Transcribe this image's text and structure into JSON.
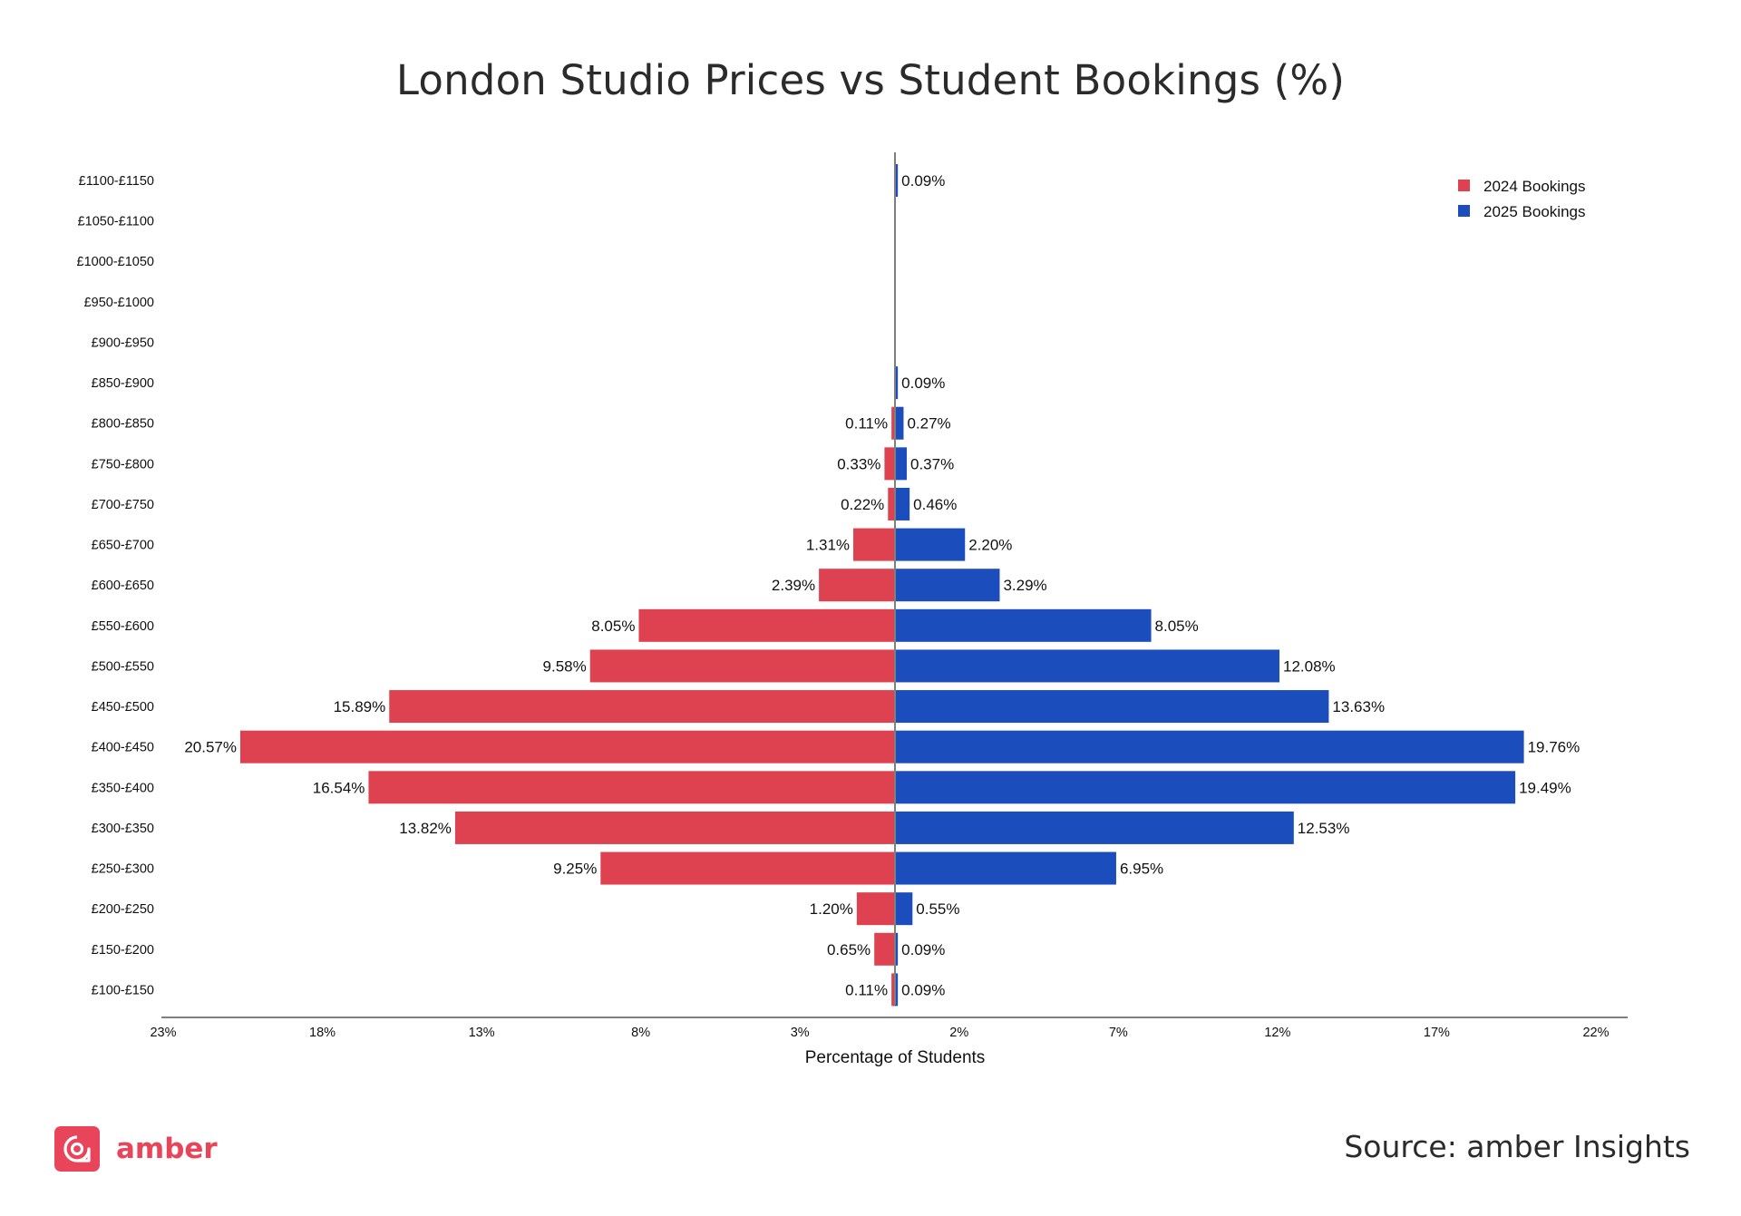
{
  "chart_data": {
    "type": "bar",
    "orientation": "horizontal",
    "layout": "diverging",
    "title": "London Studio Prices vs Student Bookings (%)",
    "xlabel": "Percentage of Students",
    "ylabel": "",
    "xlim": [
      -23,
      23
    ],
    "x_tick_labels": [
      "23%",
      "18%",
      "13%",
      "8%",
      "3%",
      "2%",
      "7%",
      "12%",
      "17%",
      "22%"
    ],
    "categories": [
      "£1100-£1150",
      "£1050-£1100",
      "£1000-£1050",
      "£950-£1000",
      "£900-£950",
      "£850-£900",
      "£800-£850",
      "£750-£800",
      "£700-£750",
      "£650-£700",
      "£600-£650",
      "£550-£600",
      "£500-£550",
      "£450-£500",
      "£400-£450",
      "£350-£400",
      "£300-£350",
      "£250-£300",
      "£200-£250",
      "£150-£200",
      "£100-£150"
    ],
    "series": [
      {
        "name": "2024 Bookings",
        "color": "#de414f",
        "side": "left",
        "values": [
          null,
          null,
          null,
          null,
          null,
          null,
          0.11,
          0.33,
          0.22,
          1.31,
          2.39,
          8.05,
          9.58,
          15.89,
          20.57,
          16.54,
          13.82,
          9.25,
          1.2,
          0.65,
          0.11
        ],
        "labels": [
          "",
          "",
          "",
          "",
          "",
          "",
          "0.11%",
          "0.33%",
          "0.22%",
          "1.31%",
          "2.39%",
          "8.05%",
          "9.58%",
          "15.89%",
          "20.57%",
          "16.54%",
          "13.82%",
          "9.25%",
          "1.20%",
          "0.65%",
          "0.11%"
        ]
      },
      {
        "name": "2025 Bookings",
        "color": "#1b4dbd",
        "side": "right",
        "values": [
          0.09,
          null,
          null,
          null,
          null,
          0.09,
          0.27,
          0.37,
          0.46,
          2.2,
          3.29,
          8.05,
          12.08,
          13.63,
          19.76,
          19.49,
          12.53,
          6.95,
          0.55,
          0.09,
          0.09
        ],
        "labels": [
          "0.09%",
          "",
          "",
          "",
          "",
          "0.09%",
          "0.27%",
          "0.37%",
          "0.46%",
          "2.20%",
          "3.29%",
          "8.05%",
          "12.08%",
          "13.63%",
          "19.76%",
          "19.49%",
          "12.53%",
          "6.95%",
          "0.55%",
          "0.09%",
          "0.09%"
        ]
      }
    ],
    "legend_position": "top-right",
    "grid": false
  },
  "brand": {
    "logo_text": "amber",
    "color": "#e8455a",
    "logo_icon": "chat-bubble-icon"
  },
  "source": "Source: amber Insights"
}
